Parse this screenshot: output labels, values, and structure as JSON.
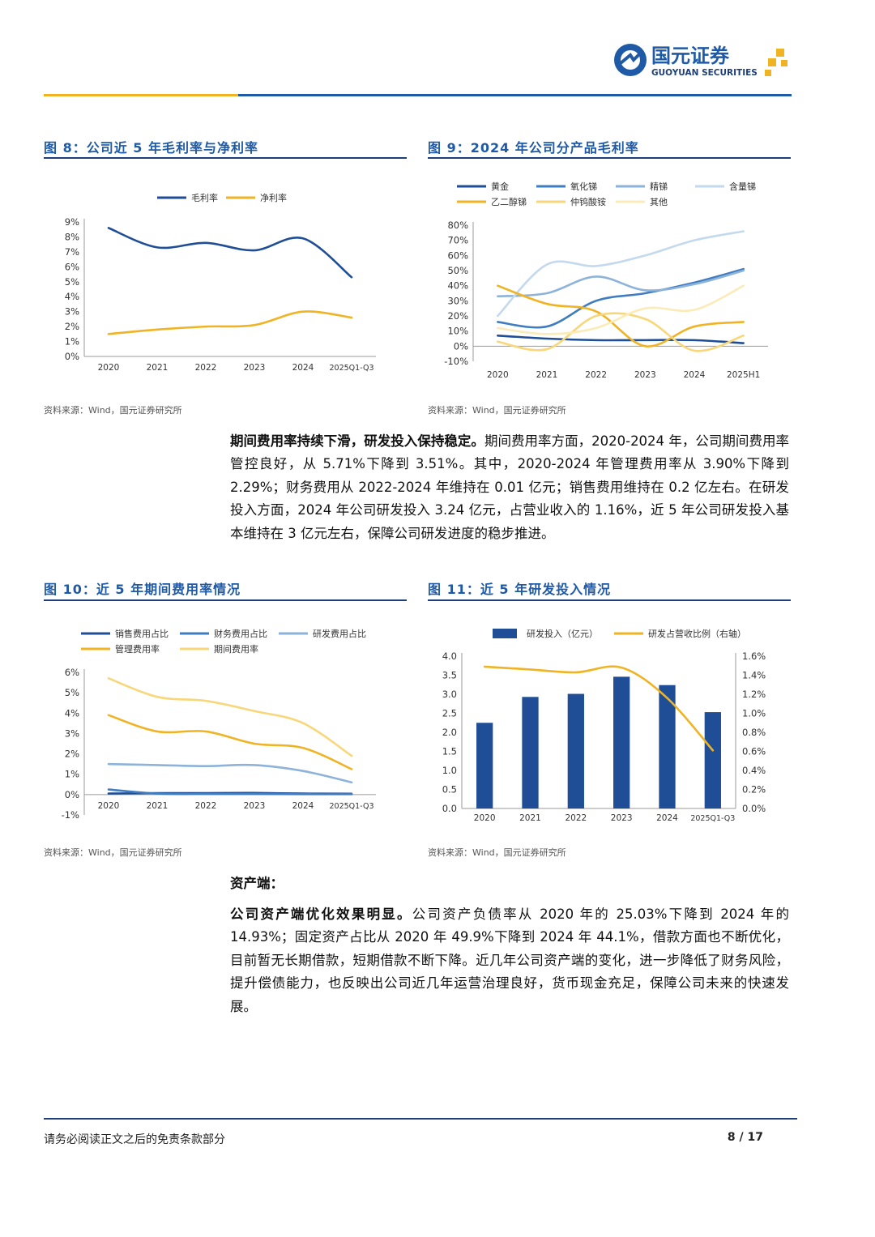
{
  "header": {
    "brand_cn": "国元证券",
    "brand_en": "GUOYUAN SECURITIES",
    "colors": {
      "blue": "#1f5aa6",
      "gold": "#f0b323"
    }
  },
  "figures": {
    "fig8": {
      "title": "图 8：公司近 5 年毛利率与净利率",
      "source": "资料来源：Wind，国元证券研究所"
    },
    "fig9": {
      "title": "图 9：2024 年公司分产品毛利率",
      "source": "资料来源：Wind，国元证券研究所"
    },
    "fig10": {
      "title": "图 10：近 5 年期间费用率情况",
      "source": "资料来源：Wind，国元证券研究所"
    },
    "fig11": {
      "title": "图 11：近 5 年研发投入情况",
      "source": "资料来源：Wind，国元证券研究所"
    }
  },
  "paragraphs": {
    "p1_bold": "期间费用率持续下滑，研发投入保持稳定。",
    "p1_text": "期间费用率方面，2020-2024 年，公司期间费用率管控良好，从 5.71%下降到 3.51%。其中，2020-2024 年管理费用率从 3.90%下降到 2.29%；财务费用从 2022-2024 年维持在 0.01 亿元；销售费用维持在 0.2 亿左右。在研发投入方面，2024 年公司研发投入 3.24 亿元，占营业收入的 1.16%，近 5 年公司研发投入基本维持在 3 亿元左右，保障公司研发进度的稳步推进。",
    "asset_heading": "资产端：",
    "p2_bold": "公司资产端优化效果明显。",
    "p2_text": "公司资产负债率从 2020 年的 25.03%下降到 2024 年的 14.93%；固定资产占比从 2020 年 49.9%下降到 2024 年 44.1%，借款方面也不断优化，目前暂无长期借款，短期借款不断下降。近几年公司资产端的变化，进一步降低了财务风险，提升偿债能力，也反映出公司近几年运营治理良好，货币现金充足，保障公司未来的快速发展。"
  },
  "footer": {
    "note": "请务必阅读正文之后的免责条款部分",
    "page": "8 / 17"
  },
  "chart_data": [
    {
      "id": "fig8",
      "type": "line",
      "x": [
        "2020",
        "2021",
        "2022",
        "2023",
        "2024",
        "2025Q1-Q3"
      ],
      "ylim": [
        0,
        9
      ],
      "yticks": [
        0,
        1,
        2,
        3,
        4,
        5,
        6,
        7,
        8,
        9
      ],
      "yformat": "pct0",
      "legend": "top-center",
      "series": [
        {
          "name": "毛利率",
          "color": "#1f4e96",
          "values": [
            8.6,
            7.3,
            7.6,
            7.1,
            7.9,
            5.3
          ]
        },
        {
          "name": "净利率",
          "color": "#f0b323",
          "values": [
            1.5,
            1.8,
            2.0,
            2.1,
            3.0,
            2.6
          ]
        }
      ]
    },
    {
      "id": "fig9",
      "type": "line",
      "x": [
        "2020",
        "2021",
        "2022",
        "2023",
        "2024",
        "2025H1"
      ],
      "ylim": [
        -10,
        80
      ],
      "yticks": [
        -10,
        0,
        10,
        20,
        30,
        40,
        50,
        60,
        70,
        80
      ],
      "yformat": "pct0",
      "legend": "top-left",
      "series": [
        {
          "name": "黄金",
          "color": "#1f4e96",
          "values": [
            7,
            5,
            4,
            4,
            4,
            2
          ]
        },
        {
          "name": "氧化锑",
          "color": "#3f7cc0",
          "values": [
            16,
            13,
            30,
            35,
            42,
            51
          ]
        },
        {
          "name": "精锑",
          "color": "#8db3da",
          "values": [
            33,
            35,
            46,
            37,
            41,
            50
          ]
        },
        {
          "name": "含量锑",
          "color": "#c4d9ee",
          "values": [
            20,
            54,
            53,
            60,
            70,
            76
          ]
        },
        {
          "name": "乙二醇锑",
          "color": "#f0b323",
          "values": [
            40,
            28,
            23,
            0,
            13,
            16
          ]
        },
        {
          "name": "仲钨酸铵",
          "color": "#f7d77a",
          "values": [
            3,
            -2,
            20,
            18,
            -3,
            7
          ]
        },
        {
          "name": "其他",
          "color": "#fbebb8",
          "values": [
            12,
            8,
            12,
            25,
            24,
            40
          ]
        }
      ]
    },
    {
      "id": "fig10",
      "type": "line",
      "x": [
        "2020",
        "2021",
        "2022",
        "2023",
        "2024",
        "2025Q1-Q3"
      ],
      "ylim": [
        -1,
        6
      ],
      "yticks": [
        -1,
        0,
        1,
        2,
        3,
        4,
        5,
        6
      ],
      "yformat": "pct0",
      "legend": "top-left",
      "series": [
        {
          "name": "销售费用占比",
          "color": "#1f4e96",
          "values": [
            0.05,
            0.07,
            0.07,
            0.08,
            0.05,
            0.04
          ]
        },
        {
          "name": "财务费用占比",
          "color": "#3f7cc0",
          "values": [
            0.25,
            0.05,
            0.03,
            0.03,
            0.02,
            0.02
          ]
        },
        {
          "name": "研发费用占比",
          "color": "#8db3da",
          "values": [
            1.5,
            1.45,
            1.4,
            1.45,
            1.16,
            0.6
          ]
        },
        {
          "name": "管理费用率",
          "color": "#f0b323",
          "values": [
            3.9,
            3.1,
            3.1,
            2.5,
            2.29,
            1.25
          ]
        },
        {
          "name": "期间费用率",
          "color": "#f7d77a",
          "values": [
            5.71,
            4.8,
            4.6,
            4.1,
            3.51,
            1.9
          ]
        }
      ]
    },
    {
      "id": "fig11",
      "type": "bar+line",
      "x": [
        "2020",
        "2021",
        "2022",
        "2023",
        "2024",
        "2025Q1-Q3"
      ],
      "ylim": [
        0,
        4
      ],
      "yticks": [
        0,
        0.5,
        1,
        1.5,
        2,
        2.5,
        3,
        3.5,
        4
      ],
      "yformat": "dec1",
      "y2lim": [
        0,
        1.6
      ],
      "y2ticks": [
        0,
        0.2,
        0.4,
        0.6,
        0.8,
        1,
        1.2,
        1.4,
        1.6
      ],
      "y2format": "pct1",
      "legend": "top-center",
      "series": [
        {
          "name": "研发投入（亿元）",
          "kind": "bar",
          "color": "#1f4e96",
          "values": [
            2.25,
            2.93,
            3.01,
            3.46,
            3.24,
            2.53
          ]
        },
        {
          "name": "研发占营收比例（右轴）",
          "kind": "line",
          "axis": "right",
          "color": "#f0b323",
          "values": [
            1.49,
            1.46,
            1.43,
            1.48,
            1.16,
            0.61
          ]
        }
      ]
    }
  ]
}
